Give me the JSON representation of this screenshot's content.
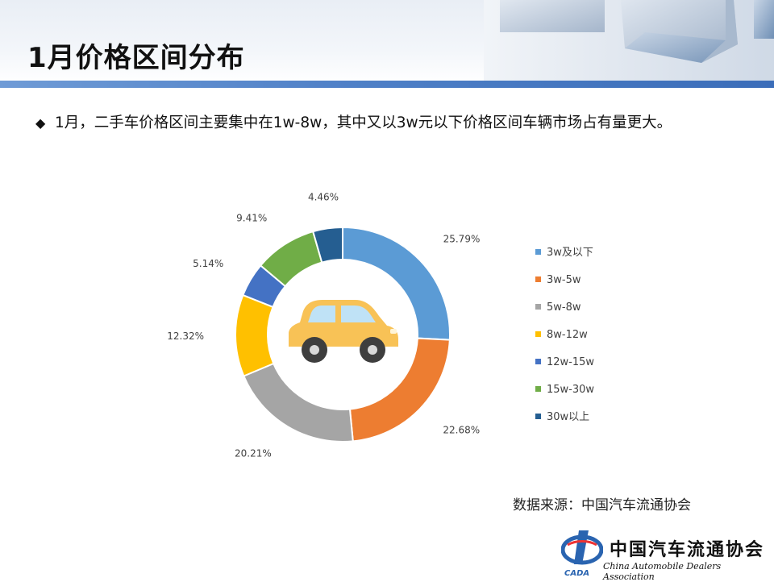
{
  "page": {
    "title": "1月价格区间分布"
  },
  "bullet": {
    "text": "1月，二手车价格区间主要集中在1w-8w，其中又以3w元以下价格区间车辆市场占有量更大。"
  },
  "chart_data": {
    "type": "pie",
    "variant": "donut",
    "categories": [
      "3w及以下",
      "3w-5w",
      "5w-8w",
      "8w-12w",
      "12w-15w",
      "15w-30w",
      "30w以上"
    ],
    "values": [
      25.79,
      22.68,
      20.21,
      12.32,
      5.14,
      9.41,
      4.46
    ],
    "value_labels": [
      "25.79%",
      "22.68%",
      "20.21%",
      "12.32%",
      "5.14%",
      "9.41%",
      "4.46%"
    ],
    "colors": [
      "#5b9bd5",
      "#ed7d31",
      "#a5a5a5",
      "#ffc000",
      "#4472c4",
      "#70ad47",
      "#255e91"
    ],
    "legend_position": "right",
    "center_icon": "car-icon"
  },
  "source": {
    "text": "数据来源：中国汽车流通协会"
  },
  "logo": {
    "cn": "中国汽车流通协会",
    "en": "China Automobile Dealers Association",
    "abbr": "CADA"
  }
}
